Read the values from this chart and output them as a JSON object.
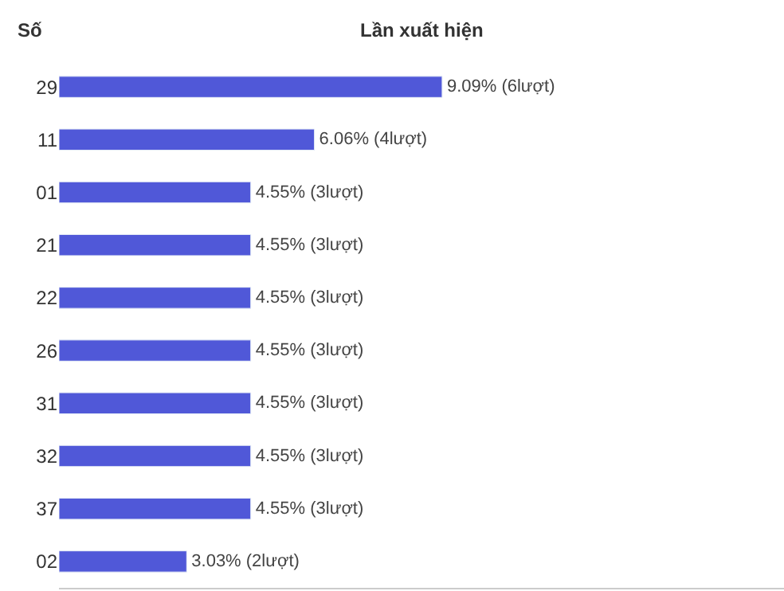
{
  "chart_data": {
    "type": "bar",
    "orientation": "horizontal",
    "xlabel": "Lần xuất hiện",
    "ylabel": "Số",
    "categories": [
      "29",
      "11",
      "01",
      "21",
      "22",
      "26",
      "31",
      "32",
      "37",
      "02"
    ],
    "values": [
      9.09,
      6.06,
      4.55,
      4.55,
      4.55,
      4.55,
      4.55,
      4.55,
      4.55,
      3.03
    ],
    "value_labels": [
      "9.09% (6lượt)",
      "6.06% (4lượt)",
      "4.55% (3lượt)",
      "4.55% (3lượt)",
      "4.55% (3lượt)",
      "4.55% (3lượt)",
      "4.55% (3lượt)",
      "4.55% (3lượt)",
      "4.55% (3lượt)",
      "3.03% (2lượt)"
    ],
    "color": "#5058d8",
    "xlim": [
      0,
      17.2
    ],
    "tick_labels": "y",
    "legend": false
  }
}
